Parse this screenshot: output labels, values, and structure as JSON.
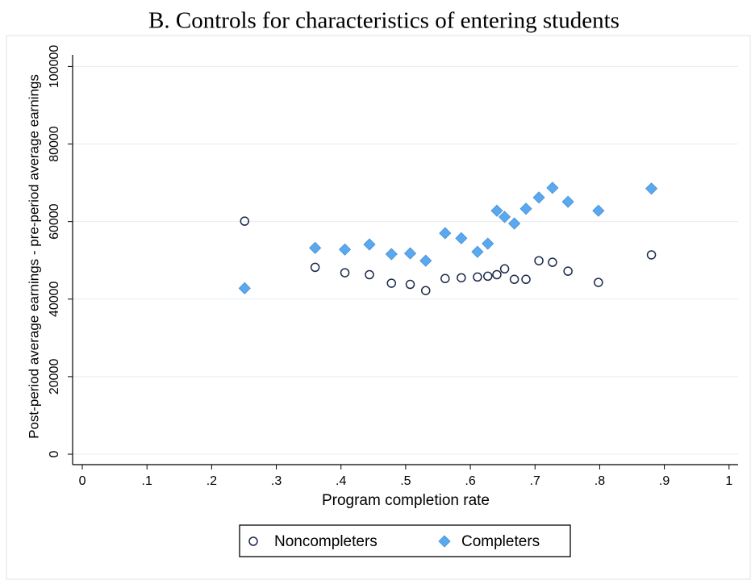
{
  "chart_data": {
    "type": "scatter",
    "title": "B. Controls for characteristics of entering students",
    "xlabel": "Program completion rate",
    "ylabel": "Post-period average earnings - pre-period average earnings",
    "x": [
      0.251,
      0.36,
      0.406,
      0.444,
      0.478,
      0.507,
      0.531,
      0.561,
      0.586,
      0.611,
      0.627,
      0.641,
      0.653,
      0.668,
      0.686,
      0.706,
      0.727,
      0.751,
      0.798,
      0.88
    ],
    "series": [
      {
        "name": "Noncompleters",
        "color": "#1a2a4a",
        "marker": "circle",
        "values": [
          60100,
          48200,
          46800,
          46300,
          44100,
          43800,
          42200,
          45300,
          45500,
          45700,
          45900,
          46300,
          47800,
          45100,
          45100,
          49900,
          49500,
          47200,
          44300,
          51400
        ]
      },
      {
        "name": "Completers",
        "color": "#5aa9f0",
        "marker": "diamond",
        "values": [
          42800,
          53200,
          52800,
          54100,
          51600,
          51800,
          49900,
          57000,
          55700,
          52200,
          54300,
          62800,
          61200,
          59500,
          63300,
          66200,
          68700,
          65100,
          62800,
          68500
        ]
      }
    ],
    "xlim": [
      -0.015,
      1.014
    ],
    "ylim": [
      -2700,
      103000
    ],
    "xticks": [
      0,
      {
        "value": 0.1,
        "label": ".1"
      },
      {
        "value": 0.2,
        "label": ".2"
      },
      {
        "value": 0.3,
        "label": ".3"
      },
      {
        "value": 0.4,
        "label": ".4"
      },
      {
        "value": 0.5,
        "label": ".5"
      },
      {
        "value": 0.6,
        "label": ".6"
      },
      {
        "value": 0.7,
        "label": ".7"
      },
      {
        "value": 0.8,
        "label": ".8"
      },
      {
        "value": 0.9,
        "label": ".9"
      },
      1
    ],
    "yticks": [
      0,
      20000,
      40000,
      60000,
      80000,
      100000
    ],
    "grid": true,
    "legend": "bottom"
  }
}
